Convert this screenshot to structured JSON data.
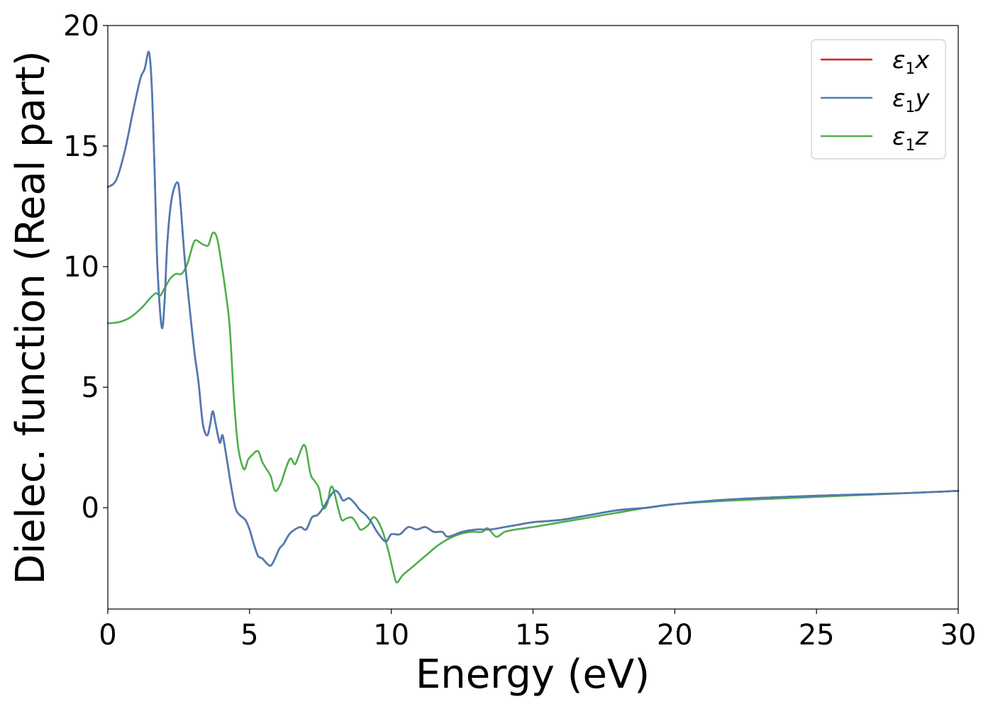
{
  "chart_data": {
    "type": "line",
    "title": "",
    "xlabel": "Energy (eV)",
    "ylabel": "Dielec. function (Real part)",
    "xlim": [
      0,
      30
    ],
    "ylim": [
      -4.2,
      20
    ],
    "xticks": [
      0,
      5,
      10,
      15,
      20,
      25,
      30
    ],
    "yticks": [
      0,
      5,
      10,
      15,
      20
    ],
    "grid": false,
    "legend_position": "top-right",
    "series": [
      {
        "name": "ε1x",
        "legend_main": "ε",
        "legend_sub": "1",
        "legend_axis": "x",
        "color": "#e41a1c",
        "x": [
          0,
          0.3,
          0.6,
          0.9,
          1.15,
          1.3,
          1.45,
          1.55,
          1.65,
          1.75,
          1.9,
          2.0,
          2.1,
          2.25,
          2.45,
          2.55,
          2.7,
          2.85,
          3.05,
          3.2,
          3.35,
          3.5,
          3.6,
          3.7,
          3.8,
          3.95,
          4.05,
          4.2,
          4.35,
          4.5,
          4.65,
          4.85,
          5.0,
          5.15,
          5.3,
          5.45,
          5.6,
          5.75,
          5.9,
          6.05,
          6.2,
          6.4,
          6.6,
          6.8,
          7.0,
          7.2,
          7.4,
          7.6,
          7.8,
          8.0,
          8.15,
          8.3,
          8.5,
          8.7,
          8.9,
          9.1,
          9.3,
          9.5,
          9.8,
          10.0,
          10.3,
          10.6,
          10.9,
          11.2,
          11.5,
          11.8,
          12.0,
          12.5,
          13.0,
          13.5,
          14.0,
          14.5,
          15.0,
          16.0,
          17.0,
          18.0,
          19.0,
          20.0,
          22.0,
          25.0,
          28.0,
          30.0
        ],
        "y": [
          13.3,
          13.6,
          14.8,
          16.5,
          17.8,
          18.2,
          18.9,
          17.5,
          14.0,
          10.0,
          7.5,
          8.5,
          11.0,
          12.8,
          13.5,
          12.8,
          10.5,
          8.7,
          6.5,
          5.2,
          3.5,
          3.0,
          3.4,
          4.0,
          3.5,
          2.7,
          3.0,
          2.0,
          0.9,
          0.0,
          -0.3,
          -0.5,
          -0.9,
          -1.5,
          -2.0,
          -2.1,
          -2.3,
          -2.4,
          -2.1,
          -1.7,
          -1.5,
          -1.1,
          -0.9,
          -0.8,
          -0.9,
          -0.4,
          -0.3,
          0.0,
          0.4,
          0.7,
          0.6,
          0.3,
          0.4,
          0.2,
          -0.1,
          -0.3,
          -0.6,
          -1.0,
          -1.4,
          -1.1,
          -1.1,
          -0.8,
          -0.9,
          -0.8,
          -1.0,
          -1.0,
          -1.2,
          -1.0,
          -0.9,
          -0.9,
          -0.8,
          -0.7,
          -0.6,
          -0.5,
          -0.3,
          -0.1,
          0.0,
          0.15,
          0.35,
          0.5,
          0.6,
          0.7
        ]
      },
      {
        "name": "ε1y",
        "legend_main": "ε",
        "legend_sub": "1",
        "legend_axis": "y",
        "color": "#4a7db4",
        "x": [
          0,
          0.3,
          0.6,
          0.9,
          1.15,
          1.3,
          1.45,
          1.55,
          1.65,
          1.75,
          1.9,
          2.0,
          2.1,
          2.25,
          2.45,
          2.55,
          2.7,
          2.85,
          3.05,
          3.2,
          3.35,
          3.5,
          3.6,
          3.7,
          3.8,
          3.95,
          4.05,
          4.2,
          4.35,
          4.5,
          4.65,
          4.85,
          5.0,
          5.15,
          5.3,
          5.45,
          5.6,
          5.75,
          5.9,
          6.05,
          6.2,
          6.4,
          6.6,
          6.8,
          7.0,
          7.2,
          7.4,
          7.6,
          7.8,
          8.0,
          8.15,
          8.3,
          8.5,
          8.7,
          8.9,
          9.1,
          9.3,
          9.5,
          9.8,
          10.0,
          10.3,
          10.6,
          10.9,
          11.2,
          11.5,
          11.8,
          12.0,
          12.5,
          13.0,
          13.5,
          14.0,
          14.5,
          15.0,
          16.0,
          17.0,
          18.0,
          19.0,
          20.0,
          22.0,
          25.0,
          28.0,
          30.0
        ],
        "y": [
          13.3,
          13.6,
          14.8,
          16.5,
          17.8,
          18.2,
          18.9,
          17.5,
          14.0,
          10.0,
          7.5,
          8.5,
          11.0,
          12.8,
          13.5,
          12.8,
          10.5,
          8.7,
          6.5,
          5.2,
          3.5,
          3.0,
          3.4,
          4.0,
          3.5,
          2.7,
          3.0,
          2.0,
          0.9,
          0.0,
          -0.3,
          -0.5,
          -0.9,
          -1.5,
          -2.0,
          -2.1,
          -2.3,
          -2.4,
          -2.1,
          -1.7,
          -1.5,
          -1.1,
          -0.9,
          -0.8,
          -0.9,
          -0.4,
          -0.3,
          0.0,
          0.4,
          0.7,
          0.6,
          0.3,
          0.4,
          0.2,
          -0.1,
          -0.3,
          -0.6,
          -1.0,
          -1.4,
          -1.1,
          -1.1,
          -0.8,
          -0.9,
          -0.8,
          -1.0,
          -1.0,
          -1.2,
          -1.0,
          -0.9,
          -0.9,
          -0.8,
          -0.7,
          -0.6,
          -0.5,
          -0.3,
          -0.1,
          0.0,
          0.15,
          0.35,
          0.5,
          0.6,
          0.7
        ]
      },
      {
        "name": "ε1z",
        "legend_main": "ε",
        "legend_sub": "1",
        "legend_axis": "z",
        "color": "#4daf4a",
        "x": [
          0,
          0.4,
          0.8,
          1.2,
          1.5,
          1.7,
          1.85,
          2.0,
          2.2,
          2.4,
          2.6,
          2.8,
          3.0,
          3.1,
          3.25,
          3.4,
          3.55,
          3.7,
          3.85,
          4.0,
          4.15,
          4.3,
          4.45,
          4.6,
          4.8,
          4.95,
          5.1,
          5.3,
          5.45,
          5.6,
          5.75,
          5.9,
          6.1,
          6.3,
          6.45,
          6.6,
          6.75,
          6.9,
          7.0,
          7.15,
          7.3,
          7.45,
          7.6,
          7.75,
          7.85,
          7.95,
          8.1,
          8.25,
          8.4,
          8.6,
          8.75,
          8.9,
          9.05,
          9.2,
          9.35,
          9.5,
          9.7,
          9.9,
          10.1,
          10.2,
          10.4,
          10.7,
          11.0,
          11.3,
          11.6,
          12.0,
          12.4,
          12.8,
          13.2,
          13.4,
          13.7,
          14.0,
          14.4,
          15.0,
          15.5,
          16.0,
          17.0,
          18.0,
          19.0,
          20.0,
          22.0,
          25.0,
          28.0,
          30.0
        ],
        "y": [
          7.65,
          7.7,
          7.9,
          8.3,
          8.7,
          8.9,
          8.8,
          9.1,
          9.5,
          9.7,
          9.7,
          10.1,
          10.9,
          11.1,
          11.0,
          10.9,
          10.9,
          11.4,
          11.2,
          10.2,
          9.0,
          7.5,
          4.5,
          2.5,
          1.6,
          2.0,
          2.2,
          2.35,
          1.9,
          1.6,
          1.3,
          0.7,
          1.0,
          1.7,
          2.05,
          1.8,
          2.2,
          2.6,
          2.4,
          1.4,
          1.1,
          0.8,
          0.0,
          0.2,
          0.8,
          0.8,
          0.1,
          -0.5,
          -0.45,
          -0.4,
          -0.6,
          -0.9,
          -0.85,
          -0.7,
          -0.4,
          -0.5,
          -1.0,
          -1.8,
          -2.8,
          -3.1,
          -2.8,
          -2.5,
          -2.2,
          -1.9,
          -1.6,
          -1.3,
          -1.1,
          -1.0,
          -1.0,
          -0.85,
          -1.2,
          -1.0,
          -0.9,
          -0.8,
          -0.7,
          -0.6,
          -0.4,
          -0.2,
          0.0,
          0.15,
          0.3,
          0.45,
          0.6,
          0.7
        ]
      }
    ]
  }
}
